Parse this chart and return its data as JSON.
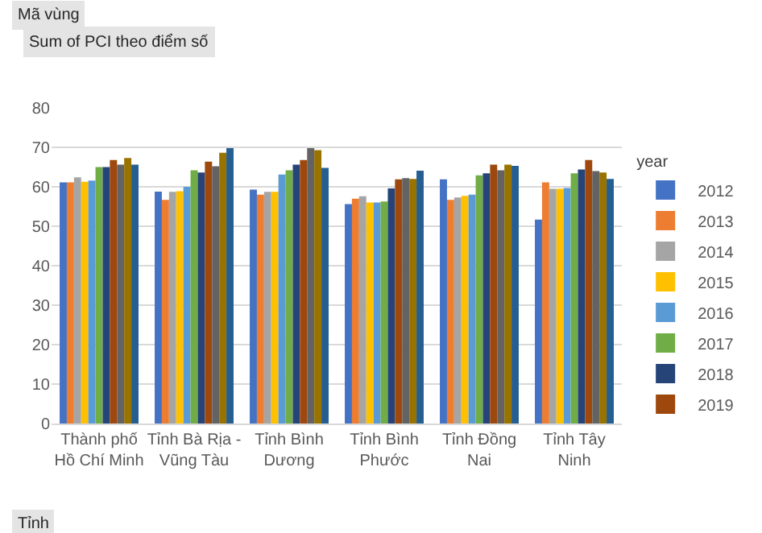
{
  "chart_data": {
    "type": "bar",
    "title": "Sum of PCI theo điểm số",
    "legend_title": "year",
    "legend": "right",
    "grid": "y",
    "annotations": [
      "Mã vùng",
      "Tỉnh"
    ],
    "categories": [
      "Thành phố\nHồ Chí Minh",
      "Tỉnh Bà Rịa -\nVũng Tàu",
      "Tỉnh Bình\nDương",
      "Tỉnh Bình\nPhước",
      "Tỉnh Đồng\nNai",
      "Tỉnh Tây\nNinh"
    ],
    "ylim": [
      0,
      80
    ],
    "yticks": [
      0,
      10,
      20,
      30,
      40,
      50,
      60,
      70,
      80
    ],
    "series": [
      {
        "name": "2012",
        "color": "#4472c4",
        "values": [
          61.1,
          58.8,
          59.3,
          55.6,
          61.9,
          51.7
        ]
      },
      {
        "name": "2013",
        "color": "#ed7d31",
        "values": [
          61.1,
          56.7,
          58.0,
          57.0,
          56.7,
          61.1
        ]
      },
      {
        "name": "2014",
        "color": "#a5a5a5",
        "values": [
          62.4,
          58.7,
          58.7,
          57.6,
          57.3,
          59.5
        ]
      },
      {
        "name": "2015",
        "color": "#ffc000",
        "values": [
          61.3,
          58.9,
          58.7,
          56.0,
          57.7,
          59.5
        ]
      },
      {
        "name": "2016",
        "color": "#5b9bd5",
        "values": [
          61.6,
          60.0,
          63.1,
          56.0,
          58.0,
          59.7
        ]
      },
      {
        "name": "2017",
        "color": "#70ad47",
        "values": [
          65.0,
          64.2,
          64.2,
          56.3,
          62.9,
          63.4
        ]
      },
      {
        "name": "2018",
        "color": "#264478",
        "values": [
          65.0,
          63.6,
          65.6,
          59.6,
          63.4,
          64.4
        ]
      },
      {
        "name": "2019",
        "color": "#9e480e",
        "values": [
          66.8,
          66.4,
          66.8,
          61.9,
          65.6,
          66.8
        ]
      },
      {
        "color": "#636363",
        "values": [
          65.6,
          65.2,
          69.8,
          62.2,
          64.2,
          64.0
        ]
      },
      {
        "color": "#997300",
        "values": [
          67.3,
          68.6,
          69.3,
          62.0,
          65.6,
          63.6
        ]
      },
      {
        "color": "#255e91",
        "values": [
          65.6,
          69.8,
          64.8,
          64.1,
          65.3,
          62.0
        ]
      }
    ]
  }
}
